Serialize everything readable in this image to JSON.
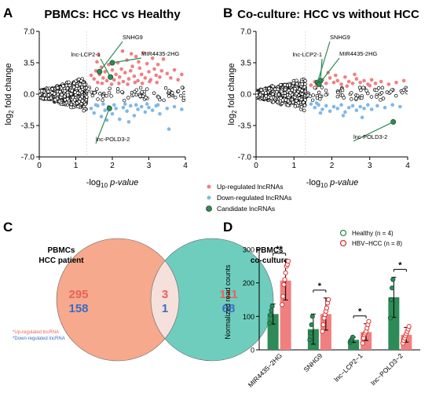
{
  "colors": {
    "up": "#F08080",
    "down": "#80B8E8",
    "candidate": "#2E8B57",
    "healthy": "#2E8B57",
    "hbv": "#E03030",
    "venn_left": "#F6A98C",
    "venn_right": "#6FCDBE",
    "gene_label": "#000000"
  },
  "panels": {
    "A": {
      "letter": "A",
      "title": "PBMCs: HCC vs Healthy",
      "xlabel_prefix": "-log",
      "xlabel_sub": "10",
      "xlabel_suffix": "p-value",
      "ylabel_main": "log",
      "ylabel_sub": "2",
      "ylabel_rest": " fold change",
      "annotations": [
        "SNHG9",
        "lnc-LCP2-1",
        "MIR4435-2HG",
        "lnc-POLD3-2"
      ]
    },
    "B": {
      "letter": "B",
      "title": "Co-culture: HCC vs without HCC",
      "xlabel_prefix": "-log",
      "xlabel_sub": "10",
      "xlabel_suffix": "p-value",
      "ylabel_main": "log",
      "ylabel_sub": "2",
      "ylabel_rest": " fold change",
      "annotations": [
        "SNHG9",
        "lnc-LCP2-1",
        "MIR4435-2HG",
        "lnc-POLD3-2"
      ]
    },
    "volcano_legend": [
      "Up-regulated lncRNAs",
      "Down-regulated lncRNAs",
      "Candidate lncRNAs"
    ],
    "C": {
      "letter": "C",
      "left_label_1": "PBMCs",
      "left_label_2": "HCC patient",
      "right_label_1": "PBMCs",
      "right_label_2": "co-culture",
      "left_up": "295",
      "left_down": "158",
      "mid_up": "3",
      "mid_down": "1",
      "right_up": "111",
      "right_down": "68",
      "note_up": "*Up-regulated lncRNA",
      "note_down": "*Down-regulated lncRNA"
    },
    "D": {
      "letter": "D",
      "ylabel": "Normalized read counts",
      "legend_healthy": "Healthy (n = 4)",
      "legend_hbv": "HBV−HCC (n = 8)",
      "sig": [
        "**",
        "*",
        "*",
        "*"
      ]
    }
  },
  "chart_data": [
    {
      "type": "scatter",
      "panel": "A",
      "title": "PBMCs: HCC vs Healthy",
      "xlabel": "-log10 p-value",
      "ylabel": "log2 fold change",
      "xlim": [
        0,
        4
      ],
      "ylim": [
        -7,
        7
      ],
      "xticks": [
        0,
        1,
        2,
        3,
        4
      ],
      "yticks": [
        7.0,
        3.5,
        0.0,
        -3.5,
        -7.0
      ],
      "series": [
        {
          "name": "Up-regulated lncRNAs",
          "color": "#F08080",
          "points": [
            [
              1.42,
              2.1
            ],
            [
              1.5,
              1.7
            ],
            [
              1.55,
              2.6
            ],
            [
              1.6,
              1.3
            ],
            [
              1.65,
              2.2
            ],
            [
              1.7,
              3.0
            ],
            [
              1.75,
              1.8
            ],
            [
              1.8,
              2.5
            ],
            [
              1.85,
              1.5
            ],
            [
              1.9,
              3.3
            ],
            [
              1.95,
              2.0
            ],
            [
              2.0,
              2.7
            ],
            [
              2.05,
              1.6
            ],
            [
              2.1,
              2.2
            ],
            [
              2.15,
              3.5
            ],
            [
              2.2,
              1.9
            ],
            [
              2.25,
              2.8
            ],
            [
              2.3,
              1.4
            ],
            [
              2.35,
              2.4
            ],
            [
              2.4,
              3.8
            ],
            [
              2.45,
              1.7
            ],
            [
              2.5,
              2.6
            ],
            [
              2.55,
              3.1
            ],
            [
              2.6,
              2.0
            ],
            [
              2.65,
              4.2
            ],
            [
              2.7,
              1.5
            ],
            [
              2.75,
              2.9
            ],
            [
              2.8,
              2.2
            ],
            [
              2.85,
              4.6
            ],
            [
              2.9,
              1.8
            ],
            [
              2.95,
              3.4
            ],
            [
              3.0,
              2.5
            ],
            [
              3.05,
              1.6
            ],
            [
              3.1,
              4.0
            ],
            [
              3.15,
              2.8
            ],
            [
              3.2,
              2.1
            ],
            [
              3.25,
              3.3
            ],
            [
              3.3,
              1.9
            ],
            [
              3.35,
              2.6
            ],
            [
              3.4,
              3.9
            ],
            [
              3.5,
              2.3
            ],
            [
              3.6,
              1.8
            ],
            [
              3.7,
              2.7
            ],
            [
              3.8,
              1.6
            ],
            [
              3.9,
              2.2
            ],
            [
              1.58,
              3.6
            ],
            [
              1.72,
              1.2
            ],
            [
              1.98,
              1.1
            ],
            [
              2.18,
              1.2
            ],
            [
              2.42,
              1.1
            ],
            [
              2.62,
              1.3
            ],
            [
              2.82,
              1.2
            ],
            [
              3.02,
              1.4
            ],
            [
              3.22,
              1.3
            ],
            [
              1.62,
              4.4
            ],
            [
              2.28,
              4.8
            ],
            [
              2.52,
              4.5
            ],
            [
              2.72,
              3.6
            ]
          ]
        },
        {
          "name": "Down-regulated lncRNAs",
          "color": "#80B8E8",
          "points": [
            [
              1.42,
              -1.6
            ],
            [
              1.5,
              -2.1
            ],
            [
              1.6,
              -1.3
            ],
            [
              1.7,
              -2.5
            ],
            [
              1.8,
              -1.8
            ],
            [
              1.9,
              -1.4
            ],
            [
              2.0,
              -2.2
            ],
            [
              2.1,
              -1.6
            ],
            [
              2.2,
              -2.8
            ],
            [
              2.3,
              -1.5
            ],
            [
              2.4,
              -1.9
            ],
            [
              2.5,
              -1.3
            ],
            [
              2.6,
              -2.4
            ],
            [
              2.7,
              -1.7
            ],
            [
              2.8,
              -1.4
            ],
            [
              2.9,
              -2.0
            ],
            [
              3.0,
              -1.5
            ],
            [
              3.1,
              -1.8
            ],
            [
              3.2,
              -1.3
            ],
            [
              3.3,
              -2.2
            ],
            [
              3.5,
              -1.6
            ],
            [
              3.7,
              -1.4
            ],
            [
              3.9,
              -1.7
            ],
            [
              1.55,
              -1.2
            ],
            [
              1.75,
              -1.1
            ],
            [
              2.05,
              -1.2
            ],
            [
              2.35,
              -1.1
            ],
            [
              2.65,
              -1.2
            ],
            [
              2.95,
              -1.1
            ],
            [
              3.25,
              -1.2
            ],
            [
              2.45,
              -3.1
            ],
            [
              3.55,
              -3.9
            ],
            [
              1.85,
              -2.9
            ]
          ]
        },
        {
          "name": "Candidate lncRNAs",
          "color": "#2E8B57",
          "points": [
            [
              1.65,
              2.5
            ],
            [
              1.95,
              1.9
            ],
            [
              2.0,
              3.5
            ],
            [
              1.92,
              -1.6
            ]
          ]
        }
      ],
      "annotation_labels": [
        "SNHG9",
        "lnc-LCP2-1",
        "MIR4435-2HG",
        "lnc-POLD3-2"
      ]
    },
    {
      "type": "scatter",
      "panel": "B",
      "title": "Co-culture: HCC vs without HCC",
      "xlabel": "-log10 p-value",
      "ylabel": "log2 fold change",
      "xlim": [
        0,
        4
      ],
      "ylim": [
        -7,
        7
      ],
      "xticks": [
        0,
        1,
        2,
        3,
        4
      ],
      "yticks": [
        7.0,
        3.5,
        0.0,
        -3.5,
        -7.0
      ],
      "series": [
        {
          "name": "Up-regulated lncRNAs",
          "color": "#F08080",
          "points": [
            [
              1.45,
              1.0
            ],
            [
              1.55,
              1.4
            ],
            [
              1.65,
              1.1
            ],
            [
              1.75,
              1.6
            ],
            [
              1.85,
              1.2
            ],
            [
              1.95,
              1.8
            ],
            [
              2.05,
              1.3
            ],
            [
              2.15,
              1.5
            ],
            [
              2.25,
              1.1
            ],
            [
              2.35,
              1.9
            ],
            [
              2.45,
              1.4
            ],
            [
              2.55,
              1.2
            ],
            [
              2.65,
              1.7
            ],
            [
              2.75,
              1.3
            ],
            [
              2.85,
              1.5
            ],
            [
              2.95,
              1.1
            ],
            [
              3.05,
              1.6
            ],
            [
              3.15,
              1.2
            ],
            [
              3.3,
              1.4
            ],
            [
              3.5,
              1.1
            ],
            [
              3.7,
              1.3
            ],
            [
              3.9,
              1.5
            ],
            [
              2.1,
              2.1
            ],
            [
              1.6,
              0.9
            ],
            [
              2.4,
              0.9
            ],
            [
              3.0,
              0.95
            ],
            [
              1.9,
              2.4
            ],
            [
              2.6,
              2.2
            ]
          ]
        },
        {
          "name": "Down-regulated lncRNAs",
          "color": "#80B8E8",
          "points": [
            [
              1.45,
              -1.1
            ],
            [
              1.55,
              -1.5
            ],
            [
              1.65,
              -1.2
            ],
            [
              1.75,
              -1.7
            ],
            [
              1.85,
              -1.3
            ],
            [
              1.95,
              -1.9
            ],
            [
              2.05,
              -1.4
            ],
            [
              2.15,
              -1.6
            ],
            [
              2.25,
              -1.2
            ],
            [
              2.35,
              -2.0
            ],
            [
              2.45,
              -1.5
            ],
            [
              2.55,
              -1.3
            ],
            [
              2.65,
              -1.8
            ],
            [
              2.75,
              -1.4
            ],
            [
              2.85,
              -1.6
            ],
            [
              2.95,
              -1.2
            ],
            [
              3.05,
              -1.7
            ],
            [
              3.2,
              -1.3
            ],
            [
              3.4,
              -1.5
            ],
            [
              3.6,
              -1.2
            ],
            [
              3.8,
              -1.4
            ],
            [
              2.8,
              -2.6
            ],
            [
              2.3,
              -2.4
            ],
            [
              1.7,
              -2.1
            ],
            [
              1.6,
              -1.0
            ]
          ]
        },
        {
          "name": "Candidate lncRNAs",
          "color": "#2E8B57",
          "points": [
            [
              1.62,
              1.3
            ],
            [
              1.7,
              1.5
            ],
            [
              1.66,
              1.1
            ],
            [
              3.62,
              -3.1
            ]
          ]
        }
      ],
      "annotation_labels": [
        "SNHG9",
        "lnc-LCP2-1",
        "MIR4435-2HG",
        "lnc-POLD3-2"
      ]
    },
    {
      "type": "venn",
      "panel": "C",
      "sets": [
        {
          "label": "PBMCs HCC patient",
          "only_up": 295,
          "only_down": 158
        },
        {
          "label": "PBMCs co-culture",
          "only_up": 111,
          "only_down": 68
        }
      ],
      "intersection": {
        "up": 3,
        "down": 1
      }
    },
    {
      "type": "bar",
      "panel": "D",
      "ylabel": "Normalized read counts",
      "ylim": [
        0,
        300
      ],
      "yticks": [
        0,
        100,
        200,
        300
      ],
      "categories": [
        "MIR4435−2HG",
        "SNHG9",
        "lnc−LCP2−1",
        "lnc−POLD3−2"
      ],
      "series": [
        {
          "name": "Healthy (n = 4)",
          "color": "#2E8B57",
          "values": [
            107,
            62,
            30,
            157
          ],
          "errors": [
            30,
            45,
            8,
            60
          ],
          "points": [
            [
              80,
              105,
              118,
              130
            ],
            [
              30,
              50,
              75,
              100
            ],
            [
              22,
              28,
              32,
              38
            ],
            [
              95,
              150,
              185,
              210
            ]
          ]
        },
        {
          "name": "HBV−HCC (n = 8)",
          "color": "#E03030",
          "values": [
            207,
            107,
            53,
            45
          ],
          "errors": [
            58,
            48,
            25,
            22
          ],
          "points": [
            [
              135,
              160,
              195,
              210,
              230,
              250,
              255,
              265
            ],
            [
              55,
              75,
              95,
              105,
              115,
              125,
              140,
              150
            ],
            [
              20,
              35,
              45,
              50,
              55,
              65,
              75,
              85
            ],
            [
              20,
              28,
              35,
              42,
              48,
              55,
              62,
              70
            ]
          ]
        }
      ],
      "significance": [
        "**",
        "*",
        "*",
        "*"
      ]
    }
  ]
}
